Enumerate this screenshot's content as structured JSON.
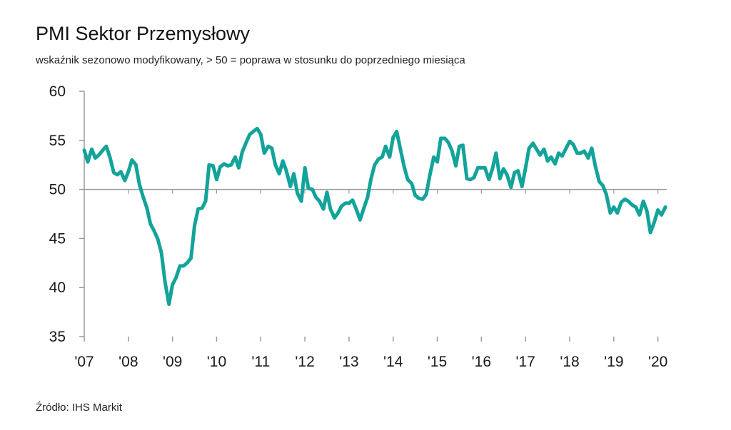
{
  "title": "PMI Sektor Przemysłowy",
  "subtitle": "wskaźnik sezonowo modyfikowany, > 50 = poprawa w stosunku do poprzedniego miesiąca",
  "source": "Źródło:  IHS Markit",
  "colors": {
    "line": "#13a39a",
    "axis": "#9a9a9a"
  },
  "chart_data": {
    "type": "line",
    "title": "PMI Sektor Przemysłowy",
    "subtitle": "wskaźnik sezonowo modyfikowany, > 50 = poprawa w stosunku do poprzedniego miesiąca",
    "xlabel": "",
    "ylabel": "",
    "ylim": [
      35,
      60
    ],
    "yticks": [
      35,
      40,
      45,
      50,
      55,
      60
    ],
    "xlim": [
      2007.0,
      2020.2
    ],
    "xticks": [
      {
        "label": "'07",
        "value": 2007
      },
      {
        "label": "'08",
        "value": 2008
      },
      {
        "label": "'09",
        "value": 2009
      },
      {
        "label": "'10",
        "value": 2010
      },
      {
        "label": "'11",
        "value": 2011
      },
      {
        "label": "'12",
        "value": 2012
      },
      {
        "label": "'13",
        "value": 2013
      },
      {
        "label": "'14",
        "value": 2014
      },
      {
        "label": "'15",
        "value": 2015
      },
      {
        "label": "'16",
        "value": 2016
      },
      {
        "label": "'17",
        "value": 2017
      },
      {
        "label": "'18",
        "value": 2018
      },
      {
        "label": "'19",
        "value": 2019
      },
      {
        "label": "'20",
        "value": 2020
      }
    ],
    "reference_line": 50,
    "grid": false,
    "series": [
      {
        "name": "",
        "points": [
          [
            2007.0,
            54.0
          ],
          [
            2007.08,
            52.8
          ],
          [
            2007.17,
            54.1
          ],
          [
            2007.25,
            53.2
          ],
          [
            2007.33,
            53.5
          ],
          [
            2007.42,
            54.0
          ],
          [
            2007.5,
            54.4
          ],
          [
            2007.58,
            53.3
          ],
          [
            2007.67,
            51.7
          ],
          [
            2007.75,
            51.5
          ],
          [
            2007.83,
            51.8
          ],
          [
            2007.92,
            50.9
          ],
          [
            2008.0,
            51.8
          ],
          [
            2008.08,
            53.0
          ],
          [
            2008.17,
            52.5
          ],
          [
            2008.25,
            50.5
          ],
          [
            2008.33,
            49.3
          ],
          [
            2008.42,
            48.1
          ],
          [
            2008.5,
            46.5
          ],
          [
            2008.58,
            45.8
          ],
          [
            2008.67,
            44.9
          ],
          [
            2008.75,
            43.5
          ],
          [
            2008.83,
            40.6
          ],
          [
            2008.92,
            38.3
          ],
          [
            2009.0,
            40.3
          ],
          [
            2009.08,
            41.0
          ],
          [
            2009.17,
            42.2
          ],
          [
            2009.25,
            42.2
          ],
          [
            2009.33,
            42.5
          ],
          [
            2009.42,
            43.0
          ],
          [
            2009.5,
            46.3
          ],
          [
            2009.58,
            48.0
          ],
          [
            2009.67,
            48.1
          ],
          [
            2009.75,
            48.8
          ],
          [
            2009.83,
            52.5
          ],
          [
            2009.92,
            52.4
          ],
          [
            2010.0,
            51.0
          ],
          [
            2010.08,
            52.3
          ],
          [
            2010.17,
            52.6
          ],
          [
            2010.25,
            52.4
          ],
          [
            2010.33,
            52.5
          ],
          [
            2010.42,
            53.3
          ],
          [
            2010.5,
            52.2
          ],
          [
            2010.58,
            53.8
          ],
          [
            2010.67,
            54.8
          ],
          [
            2010.75,
            55.6
          ],
          [
            2010.83,
            55.9
          ],
          [
            2010.92,
            56.2
          ],
          [
            2011.0,
            55.6
          ],
          [
            2011.08,
            53.7
          ],
          [
            2011.17,
            54.4
          ],
          [
            2011.25,
            54.2
          ],
          [
            2011.33,
            52.5
          ],
          [
            2011.42,
            51.6
          ],
          [
            2011.5,
            52.9
          ],
          [
            2011.58,
            51.9
          ],
          [
            2011.67,
            50.3
          ],
          [
            2011.75,
            51.6
          ],
          [
            2011.83,
            49.6
          ],
          [
            2011.92,
            48.8
          ],
          [
            2012.0,
            52.2
          ],
          [
            2012.08,
            50.1
          ],
          [
            2012.17,
            50.0
          ],
          [
            2012.25,
            49.2
          ],
          [
            2012.33,
            48.8
          ],
          [
            2012.42,
            48.0
          ],
          [
            2012.5,
            49.7
          ],
          [
            2012.58,
            48.0
          ],
          [
            2012.67,
            47.1
          ],
          [
            2012.75,
            47.6
          ],
          [
            2012.83,
            48.3
          ],
          [
            2012.92,
            48.6
          ],
          [
            2013.0,
            48.6
          ],
          [
            2013.08,
            48.9
          ],
          [
            2013.17,
            47.9
          ],
          [
            2013.25,
            46.9
          ],
          [
            2013.33,
            48.0
          ],
          [
            2013.42,
            49.2
          ],
          [
            2013.5,
            51.1
          ],
          [
            2013.58,
            52.5
          ],
          [
            2013.67,
            53.1
          ],
          [
            2013.75,
            53.3
          ],
          [
            2013.83,
            54.4
          ],
          [
            2013.92,
            53.3
          ],
          [
            2014.0,
            55.3
          ],
          [
            2014.08,
            55.9
          ],
          [
            2014.17,
            54.0
          ],
          [
            2014.25,
            52.3
          ],
          [
            2014.33,
            51.0
          ],
          [
            2014.42,
            50.6
          ],
          [
            2014.5,
            49.4
          ],
          [
            2014.58,
            49.1
          ],
          [
            2014.67,
            49.0
          ],
          [
            2014.75,
            49.5
          ],
          [
            2014.83,
            51.4
          ],
          [
            2014.92,
            53.3
          ],
          [
            2015.0,
            52.8
          ],
          [
            2015.08,
            55.2
          ],
          [
            2015.17,
            55.2
          ],
          [
            2015.25,
            54.8
          ],
          [
            2015.33,
            54.0
          ],
          [
            2015.42,
            52.4
          ],
          [
            2015.5,
            54.4
          ],
          [
            2015.58,
            54.5
          ],
          [
            2015.67,
            51.1
          ],
          [
            2015.75,
            51.0
          ],
          [
            2015.83,
            51.2
          ],
          [
            2015.92,
            52.2
          ],
          [
            2016.0,
            52.2
          ],
          [
            2016.08,
            52.2
          ],
          [
            2016.17,
            51.0
          ],
          [
            2016.25,
            52.1
          ],
          [
            2016.33,
            53.7
          ],
          [
            2016.42,
            51.1
          ],
          [
            2016.5,
            52.1
          ],
          [
            2016.58,
            51.5
          ],
          [
            2016.67,
            50.2
          ],
          [
            2016.75,
            51.7
          ],
          [
            2016.83,
            51.9
          ],
          [
            2016.92,
            50.3
          ],
          [
            2017.0,
            52.2
          ],
          [
            2017.08,
            54.2
          ],
          [
            2017.17,
            54.7
          ],
          [
            2017.25,
            54.1
          ],
          [
            2017.33,
            53.5
          ],
          [
            2017.42,
            54.1
          ],
          [
            2017.5,
            52.9
          ],
          [
            2017.58,
            53.3
          ],
          [
            2017.67,
            52.6
          ],
          [
            2017.75,
            53.7
          ],
          [
            2017.83,
            53.4
          ],
          [
            2017.92,
            54.2
          ],
          [
            2018.0,
            54.9
          ],
          [
            2018.08,
            54.6
          ],
          [
            2018.17,
            53.7
          ],
          [
            2018.25,
            53.7
          ],
          [
            2018.33,
            53.9
          ],
          [
            2018.42,
            53.2
          ],
          [
            2018.5,
            54.2
          ],
          [
            2018.58,
            52.4
          ],
          [
            2018.67,
            50.8
          ],
          [
            2018.75,
            50.4
          ],
          [
            2018.83,
            49.5
          ],
          [
            2018.92,
            47.6
          ],
          [
            2019.0,
            48.2
          ],
          [
            2019.08,
            47.6
          ],
          [
            2019.17,
            48.7
          ],
          [
            2019.25,
            49.0
          ],
          [
            2019.33,
            48.8
          ],
          [
            2019.42,
            48.4
          ],
          [
            2019.5,
            48.2
          ],
          [
            2019.58,
            47.4
          ],
          [
            2019.67,
            48.8
          ],
          [
            2019.75,
            47.8
          ],
          [
            2019.83,
            45.6
          ],
          [
            2019.92,
            46.7
          ],
          [
            2020.0,
            47.9
          ],
          [
            2020.08,
            47.4
          ],
          [
            2020.17,
            48.2
          ]
        ]
      }
    ]
  }
}
